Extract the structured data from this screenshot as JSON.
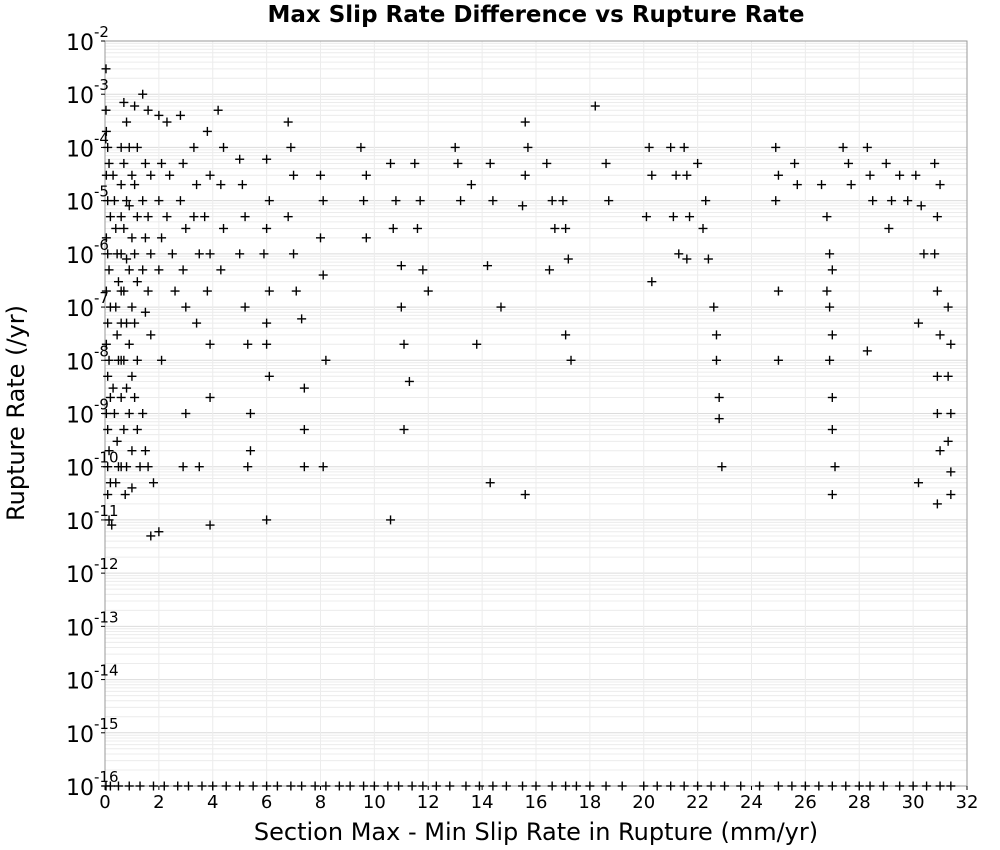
{
  "chart_data": {
    "type": "scatter",
    "title": "Max Slip Rate Difference vs Rupture Rate",
    "xlabel": "Section Max - Min Slip Rate in Rupture (mm/yr)",
    "ylabel": "Rupture Rate (/yr)",
    "xlim": [
      0,
      32
    ],
    "ylim": [
      1e-16,
      0.01
    ],
    "yscale": "log",
    "grid": true,
    "legend": "none",
    "marker": "+",
    "marker_color": "#000000",
    "x_ticks": [
      "0",
      "2",
      "4",
      "6",
      "8",
      "10",
      "12",
      "14",
      "16",
      "18",
      "20",
      "22",
      "24",
      "26",
      "28",
      "30",
      "32"
    ],
    "y_ticks": [
      {
        "base": "10",
        "exp": "-16"
      },
      {
        "base": "10",
        "exp": "-15"
      },
      {
        "base": "10",
        "exp": "-14"
      },
      {
        "base": "10",
        "exp": "-13"
      },
      {
        "base": "10",
        "exp": "-12"
      },
      {
        "base": "10",
        "exp": "-11"
      },
      {
        "base": "10",
        "exp": "-10"
      },
      {
        "base": "10",
        "exp": "-9"
      },
      {
        "base": "10",
        "exp": "-8"
      },
      {
        "base": "10",
        "exp": "-7"
      },
      {
        "base": "10",
        "exp": "-6"
      },
      {
        "base": "10",
        "exp": "-5"
      },
      {
        "base": "10",
        "exp": "-4"
      },
      {
        "base": "10",
        "exp": "-3"
      },
      {
        "base": "10",
        "exp": "-2"
      }
    ],
    "points": [
      [
        0.0,
        0.003
      ],
      [
        0.02,
        0.0005
      ],
      [
        0.05,
        0.0002
      ],
      [
        0.1,
        0.0001
      ],
      [
        0.15,
        5e-05
      ],
      [
        0.05,
        3e-05
      ],
      [
        0.1,
        1e-05
      ],
      [
        0.2,
        5e-06
      ],
      [
        0.05,
        2e-06
      ],
      [
        0.1,
        1e-06
      ],
      [
        0.15,
        5e-07
      ],
      [
        0.05,
        2e-07
      ],
      [
        0.2,
        1e-07
      ],
      [
        0.1,
        5e-08
      ],
      [
        0.05,
        2e-08
      ],
      [
        0.15,
        1e-08
      ],
      [
        0.1,
        5e-09
      ],
      [
        0.2,
        2e-09
      ],
      [
        0.05,
        1e-09
      ],
      [
        0.1,
        5e-10
      ],
      [
        0.15,
        2e-10
      ],
      [
        0.1,
        1e-10
      ],
      [
        0.2,
        5e-11
      ],
      [
        0.1,
        3e-11
      ],
      [
        0.15,
        1e-11
      ],
      [
        0.25,
        8e-12
      ],
      [
        0.3,
        3e-05
      ],
      [
        0.35,
        1e-05
      ],
      [
        0.4,
        3e-06
      ],
      [
        0.45,
        1e-06
      ],
      [
        0.5,
        3e-07
      ],
      [
        0.4,
        1e-07
      ],
      [
        0.45,
        3e-08
      ],
      [
        0.5,
        1e-08
      ],
      [
        0.3,
        3e-09
      ],
      [
        0.35,
        1e-09
      ],
      [
        0.45,
        3e-10
      ],
      [
        0.5,
        1e-10
      ],
      [
        0.4,
        5e-11
      ],
      [
        0.6,
        0.0001
      ],
      [
        0.6,
        2e-05
      ],
      [
        0.6,
        5e-06
      ],
      [
        0.6,
        1e-06
      ],
      [
        0.6,
        2e-07
      ],
      [
        0.6,
        5e-08
      ],
      [
        0.6,
        1e-08
      ],
      [
        0.6,
        2e-09
      ],
      [
        0.6,
        1e-10
      ],
      [
        0.7,
        0.0007
      ],
      [
        0.8,
        0.0003
      ],
      [
        0.7,
        5e-05
      ],
      [
        0.8,
        1e-05
      ],
      [
        0.7,
        3e-06
      ],
      [
        0.8,
        8e-07
      ],
      [
        0.7,
        2e-07
      ],
      [
        0.8,
        5e-08
      ],
      [
        0.7,
        1e-08
      ],
      [
        0.8,
        3e-09
      ],
      [
        0.7,
        5e-10
      ],
      [
        0.8,
        1e-10
      ],
      [
        0.75,
        3e-11
      ],
      [
        0.9,
        0.0001
      ],
      [
        1.0,
        3e-05
      ],
      [
        0.9,
        8e-06
      ],
      [
        1.0,
        2e-06
      ],
      [
        0.9,
        5e-07
      ],
      [
        1.0,
        1e-07
      ],
      [
        0.9,
        2e-08
      ],
      [
        1.0,
        5e-09
      ],
      [
        0.9,
        1e-09
      ],
      [
        1.0,
        2e-10
      ],
      [
        1.0,
        4e-11
      ],
      [
        1.1,
        0.0006
      ],
      [
        1.2,
        0.0001
      ],
      [
        1.1,
        2e-05
      ],
      [
        1.2,
        5e-06
      ],
      [
        1.1,
        1e-06
      ],
      [
        1.2,
        3e-07
      ],
      [
        1.1,
        5e-08
      ],
      [
        1.2,
        1e-08
      ],
      [
        1.1,
        2e-09
      ],
      [
        1.2,
        5e-10
      ],
      [
        1.3,
        1e-10
      ],
      [
        1.4,
        0.001
      ],
      [
        1.5,
        5e-05
      ],
      [
        1.4,
        1e-05
      ],
      [
        1.5,
        2e-06
      ],
      [
        1.4,
        5e-07
      ],
      [
        1.5,
        8e-08
      ],
      [
        1.4,
        1e-09
      ],
      [
        1.5,
        2e-10
      ],
      [
        1.6,
        0.0005
      ],
      [
        1.7,
        3e-05
      ],
      [
        1.6,
        5e-06
      ],
      [
        1.7,
        1e-06
      ],
      [
        1.6,
        2e-07
      ],
      [
        1.7,
        3e-08
      ],
      [
        1.6,
        1e-10
      ],
      [
        1.8,
        5e-11
      ],
      [
        1.7,
        5e-12
      ],
      [
        2.0,
        0.0004
      ],
      [
        2.1,
        5e-05
      ],
      [
        2.0,
        1e-05
      ],
      [
        2.1,
        2e-06
      ],
      [
        2.0,
        5e-07
      ],
      [
        2.1,
        1e-08
      ],
      [
        2.0,
        6e-12
      ],
      [
        2.3,
        0.0003
      ],
      [
        2.4,
        3e-05
      ],
      [
        2.3,
        5e-06
      ],
      [
        2.5,
        1e-06
      ],
      [
        2.6,
        2e-07
      ],
      [
        2.8,
        0.0004
      ],
      [
        2.9,
        5e-05
      ],
      [
        2.8,
        1e-05
      ],
      [
        3.0,
        3e-06
      ],
      [
        2.9,
        5e-07
      ],
      [
        3.0,
        1e-07
      ],
      [
        3.0,
        1e-09
      ],
      [
        2.9,
        1e-10
      ],
      [
        3.3,
        0.0001
      ],
      [
        3.4,
        2e-05
      ],
      [
        3.3,
        5e-06
      ],
      [
        3.5,
        1e-06
      ],
      [
        3.4,
        5e-08
      ],
      [
        3.5,
        1e-10
      ],
      [
        3.8,
        0.0002
      ],
      [
        3.9,
        3e-05
      ],
      [
        3.7,
        5e-06
      ],
      [
        3.9,
        1e-06
      ],
      [
        3.8,
        2e-07
      ],
      [
        3.9,
        2e-08
      ],
      [
        3.9,
        2e-09
      ],
      [
        3.9,
        8e-12
      ],
      [
        4.2,
        0.0005
      ],
      [
        4.4,
        0.0001
      ],
      [
        4.3,
        2e-05
      ],
      [
        4.4,
        3e-06
      ],
      [
        4.3,
        5e-07
      ],
      [
        5.0,
        6e-05
      ],
      [
        5.1,
        2e-05
      ],
      [
        5.2,
        5e-06
      ],
      [
        5.0,
        1e-06
      ],
      [
        5.2,
        1e-07
      ],
      [
        5.3,
        2e-08
      ],
      [
        5.4,
        1e-09
      ],
      [
        5.4,
        2e-10
      ],
      [
        5.3,
        1e-10
      ],
      [
        6.0,
        6e-05
      ],
      [
        6.1,
        1e-05
      ],
      [
        6.0,
        3e-06
      ],
      [
        5.9,
        1e-06
      ],
      [
        6.1,
        2e-07
      ],
      [
        6.0,
        5e-08
      ],
      [
        6.0,
        2e-08
      ],
      [
        6.1,
        5e-09
      ],
      [
        6.0,
        1e-11
      ],
      [
        6.8,
        0.0003
      ],
      [
        6.9,
        0.0001
      ],
      [
        7.0,
        3e-05
      ],
      [
        6.8,
        5e-06
      ],
      [
        7.0,
        1e-06
      ],
      [
        7.1,
        2e-07
      ],
      [
        7.3,
        6e-08
      ],
      [
        7.4,
        3e-09
      ],
      [
        7.4,
        1e-10
      ],
      [
        7.4,
        5e-10
      ],
      [
        8.0,
        3e-05
      ],
      [
        8.1,
        1e-05
      ],
      [
        8.0,
        2e-06
      ],
      [
        8.1,
        4e-07
      ],
      [
        8.2,
        1e-08
      ],
      [
        8.1,
        1e-10
      ],
      [
        9.5,
        0.0001
      ],
      [
        9.7,
        3e-05
      ],
      [
        9.6,
        1e-05
      ],
      [
        9.7,
        2e-06
      ],
      [
        10.6,
        5e-05
      ],
      [
        10.8,
        1e-05
      ],
      [
        10.7,
        3e-06
      ],
      [
        11.0,
        6e-07
      ],
      [
        11.0,
        1e-07
      ],
      [
        11.1,
        2e-08
      ],
      [
        11.3,
        4e-09
      ],
      [
        11.1,
        5e-10
      ],
      [
        10.6,
        1e-11
      ],
      [
        11.5,
        5e-05
      ],
      [
        11.7,
        1e-05
      ],
      [
        11.6,
        3e-06
      ],
      [
        11.8,
        5e-07
      ],
      [
        12.0,
        2e-07
      ],
      [
        13.0,
        0.0001
      ],
      [
        13.1,
        5e-05
      ],
      [
        13.2,
        1e-05
      ],
      [
        13.6,
        2e-05
      ],
      [
        13.8,
        2e-08
      ],
      [
        14.3,
        5e-05
      ],
      [
        14.4,
        1e-05
      ],
      [
        14.2,
        6e-07
      ],
      [
        14.7,
        1e-07
      ],
      [
        14.3,
        5e-11
      ],
      [
        15.6,
        0.0003
      ],
      [
        15.7,
        0.0001
      ],
      [
        15.6,
        3e-05
      ],
      [
        15.5,
        8e-06
      ],
      [
        15.6,
        3e-11
      ],
      [
        16.4,
        5e-05
      ],
      [
        16.6,
        1e-05
      ],
      [
        16.7,
        3e-06
      ],
      [
        16.5,
        5e-07
      ],
      [
        17.0,
        1e-05
      ],
      [
        17.1,
        3e-06
      ],
      [
        17.2,
        8e-07
      ],
      [
        17.1,
        3e-08
      ],
      [
        17.3,
        1e-08
      ],
      [
        18.2,
        0.0006
      ],
      [
        18.6,
        5e-05
      ],
      [
        18.7,
        1e-05
      ],
      [
        20.2,
        0.0001
      ],
      [
        20.3,
        3e-05
      ],
      [
        20.1,
        5e-06
      ],
      [
        20.3,
        3e-07
      ],
      [
        21.0,
        0.0001
      ],
      [
        21.2,
        3e-05
      ],
      [
        21.1,
        5e-06
      ],
      [
        21.3,
        1e-06
      ],
      [
        21.5,
        0.0001
      ],
      [
        21.6,
        3e-05
      ],
      [
        21.7,
        5e-06
      ],
      [
        21.6,
        8e-07
      ],
      [
        22.0,
        5e-05
      ],
      [
        22.3,
        1e-05
      ],
      [
        22.2,
        3e-06
      ],
      [
        22.4,
        8e-07
      ],
      [
        22.6,
        1e-07
      ],
      [
        22.7,
        3e-08
      ],
      [
        22.7,
        1e-08
      ],
      [
        22.8,
        2e-09
      ],
      [
        22.8,
        8e-10
      ],
      [
        22.9,
        1e-10
      ],
      [
        24.9,
        0.0001
      ],
      [
        25.0,
        3e-05
      ],
      [
        24.9,
        1e-05
      ],
      [
        25.0,
        2e-07
      ],
      [
        25.0,
        1e-08
      ],
      [
        25.6,
        5e-05
      ],
      [
        25.7,
        2e-05
      ],
      [
        26.6,
        2e-05
      ],
      [
        26.8,
        5e-06
      ],
      [
        26.9,
        1e-06
      ],
      [
        27.0,
        5e-07
      ],
      [
        26.9,
        1e-07
      ],
      [
        27.0,
        3e-08
      ],
      [
        26.9,
        1e-08
      ],
      [
        27.0,
        2e-09
      ],
      [
        27.0,
        5e-10
      ],
      [
        27.1,
        1e-10
      ],
      [
        27.0,
        3e-11
      ],
      [
        26.8,
        2e-07
      ],
      [
        27.4,
        0.0001
      ],
      [
        27.6,
        5e-05
      ],
      [
        27.7,
        2e-05
      ],
      [
        28.3,
        0.0001
      ],
      [
        28.4,
        3e-05
      ],
      [
        28.5,
        1e-05
      ],
      [
        28.3,
        1.5e-08
      ],
      [
        29.0,
        5e-05
      ],
      [
        29.2,
        1e-05
      ],
      [
        29.1,
        3e-06
      ],
      [
        29.5,
        3e-05
      ],
      [
        29.8,
        1e-05
      ],
      [
        30.1,
        3e-05
      ],
      [
        30.3,
        8e-06
      ],
      [
        30.4,
        1e-06
      ],
      [
        30.2,
        5e-08
      ],
      [
        30.2,
        5e-11
      ],
      [
        30.8,
        5e-05
      ],
      [
        31.0,
        2e-05
      ],
      [
        30.9,
        5e-06
      ],
      [
        30.8,
        1e-06
      ],
      [
        30.9,
        2e-07
      ],
      [
        31.0,
        3e-08
      ],
      [
        30.9,
        5e-09
      ],
      [
        30.9,
        1e-09
      ],
      [
        31.0,
        2e-10
      ],
      [
        30.9,
        2e-11
      ],
      [
        31.3,
        1e-07
      ],
      [
        31.4,
        2e-08
      ],
      [
        31.3,
        5e-09
      ],
      [
        31.4,
        1e-09
      ],
      [
        31.3,
        3e-10
      ],
      [
        31.4,
        8e-11
      ],
      [
        31.4,
        3e-11
      ]
    ],
    "baseline_points_at_ymin": [
      0.0,
      0.2,
      0.5,
      0.9,
      1.3,
      1.8,
      2.2,
      2.7,
      3.1,
      3.6,
      4.0,
      4.5,
      5.0,
      5.5,
      6.0,
      6.4,
      6.9,
      7.3,
      7.8,
      8.2,
      8.7,
      9.1,
      9.6,
      10.0,
      10.5,
      10.9,
      11.4,
      11.8,
      12.3,
      12.8,
      13.4,
      13.9,
      14.4,
      14.9,
      15.5,
      16.0,
      16.6,
      17.1,
      17.5,
      18.0,
      18.6,
      19.2,
      20.0,
      20.5,
      21.0,
      21.5,
      22.0,
      22.5,
      23.0,
      23.6,
      24.3,
      25.0,
      25.5,
      26.0,
      26.5,
      27.0,
      27.5,
      28.0,
      28.4,
      28.9,
      29.5,
      30.0,
      30.5,
      31.0,
      31.4
    ]
  }
}
